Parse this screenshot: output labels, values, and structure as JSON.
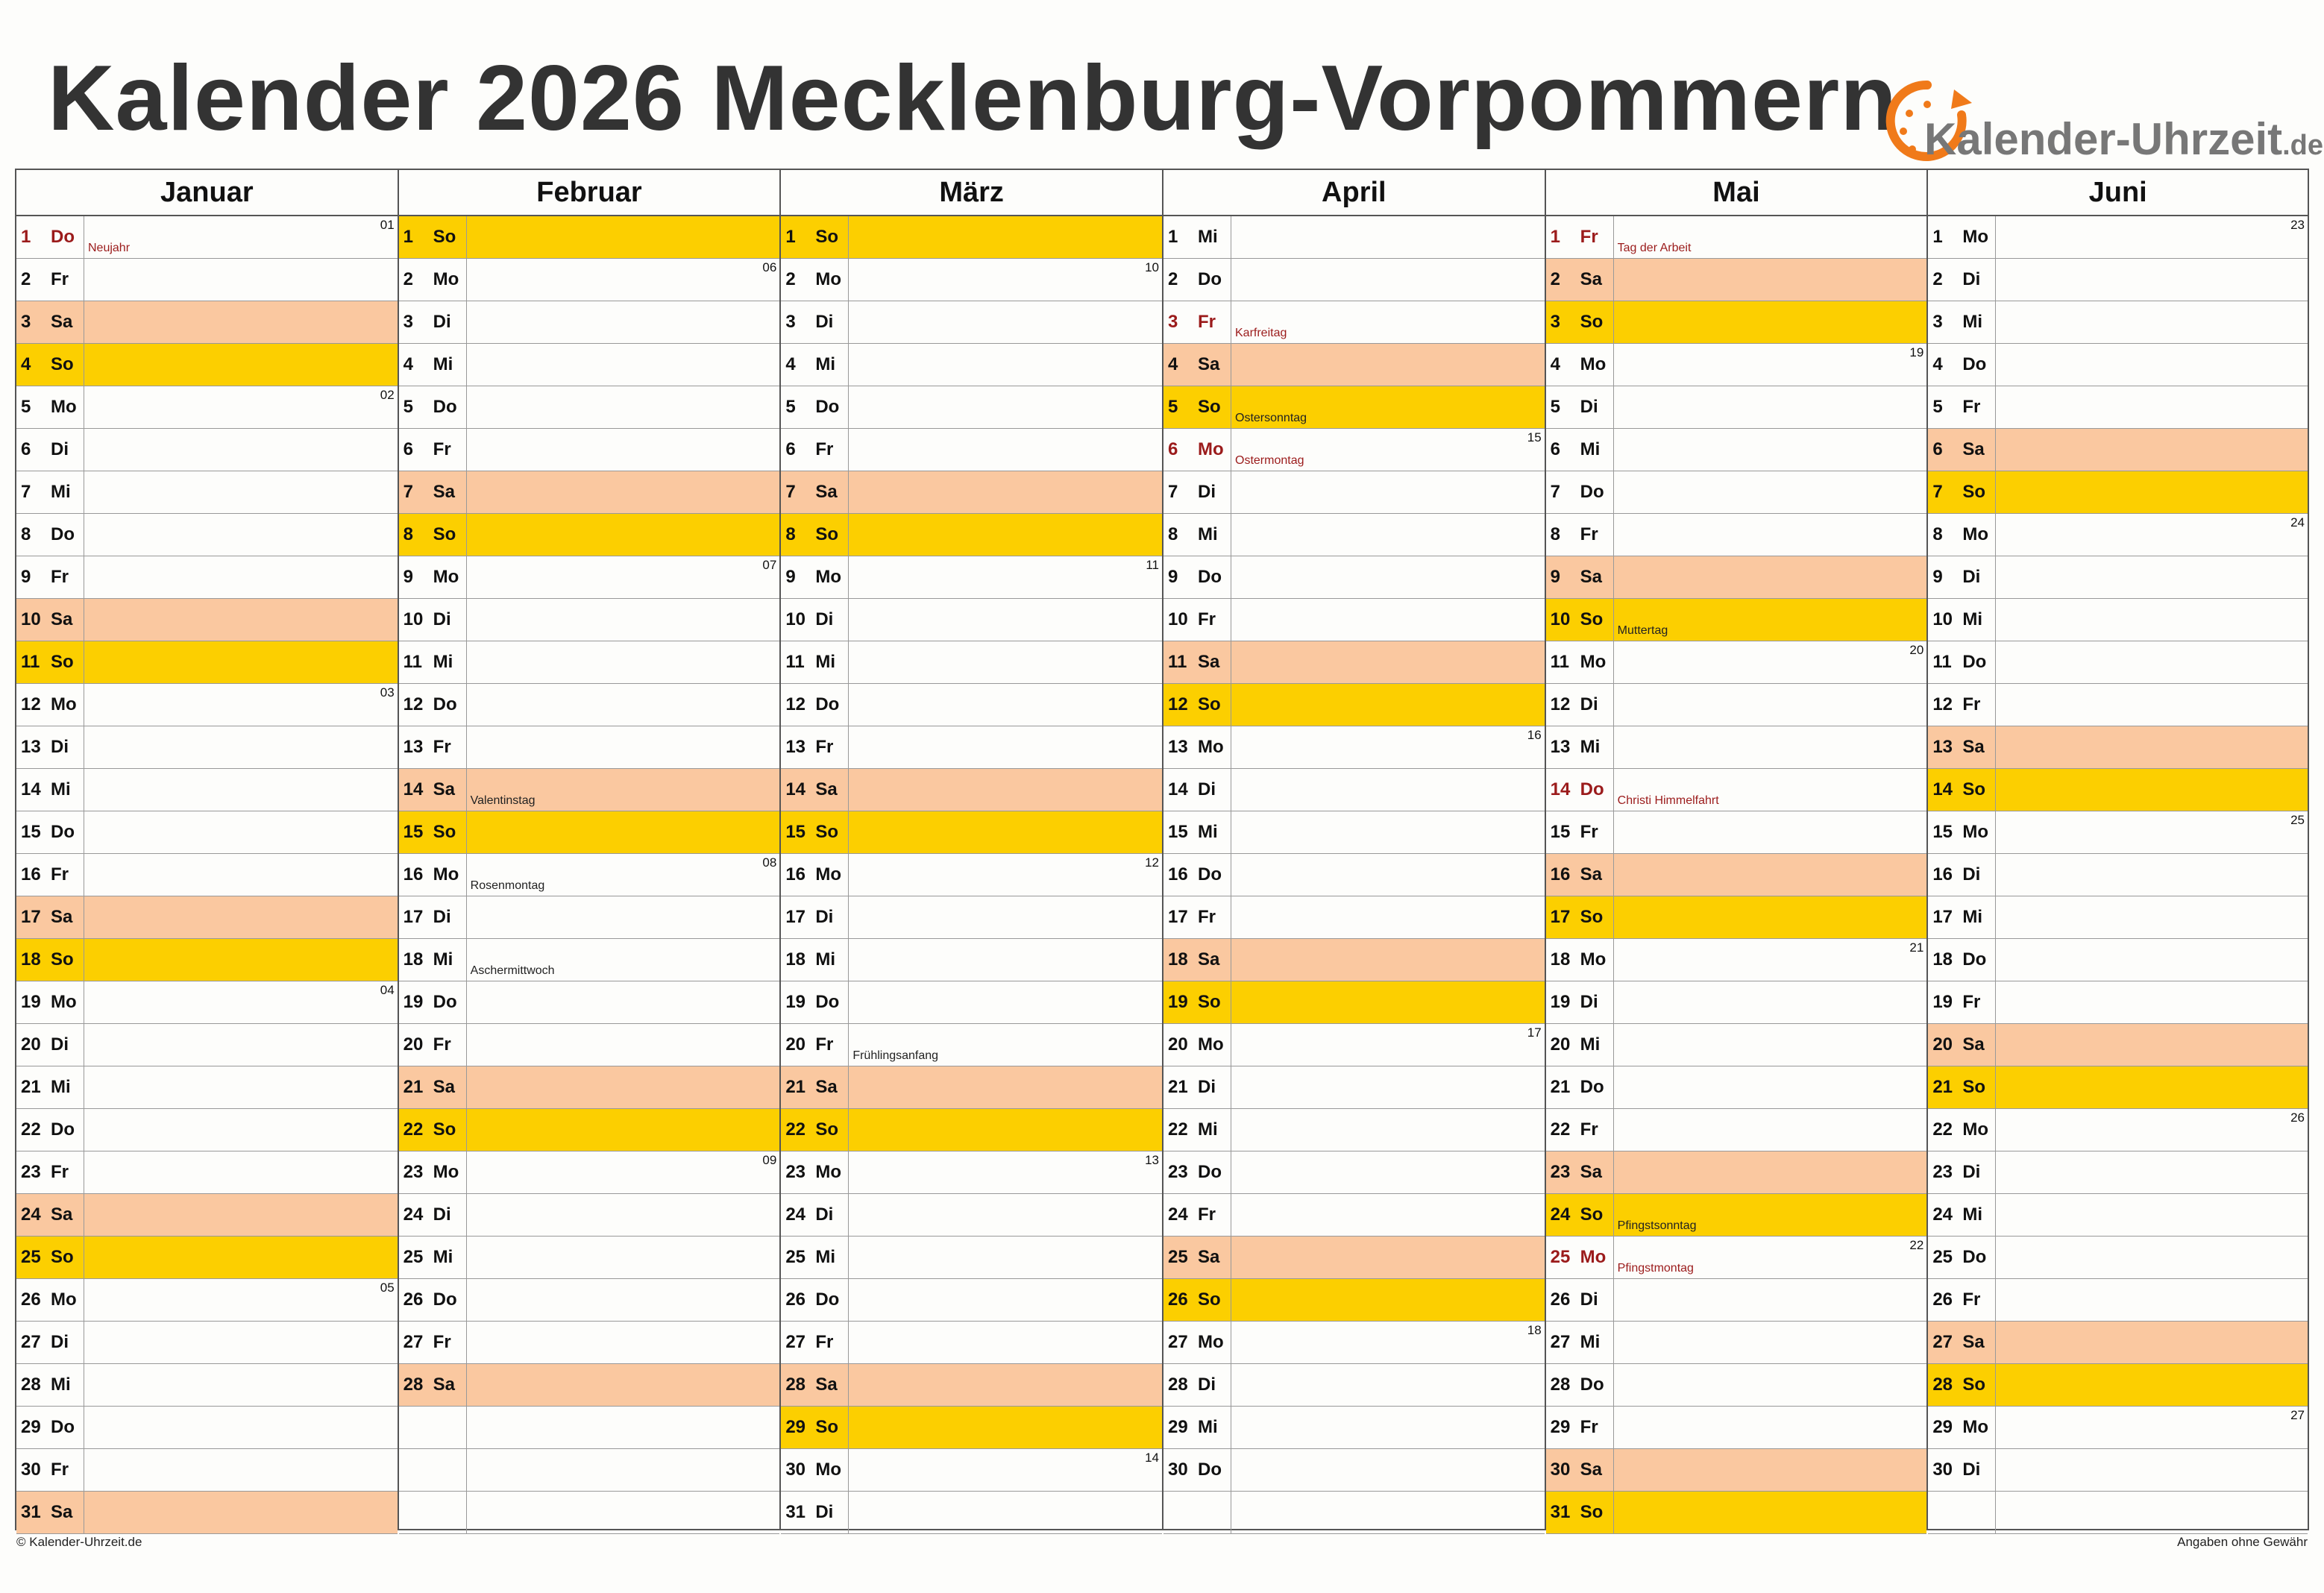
{
  "title": "Kalender 2026 Mecklenburg-Vorpommern",
  "logo": {
    "text": "Kalender-Uhrzeit",
    "tld": ".de"
  },
  "colors": {
    "saturday": "#fac8a0",
    "sunday": "#fccf00",
    "holiday_text": "#9b1b1b"
  },
  "months": [
    {
      "name": "Januar",
      "days": [
        {
          "d": "1",
          "w": "Do",
          "holiday": true,
          "note": "Neujahr",
          "kw": "01"
        },
        {
          "d": "2",
          "w": "Fr"
        },
        {
          "d": "3",
          "w": "Sa"
        },
        {
          "d": "4",
          "w": "So"
        },
        {
          "d": "5",
          "w": "Mo",
          "kw": "02"
        },
        {
          "d": "6",
          "w": "Di"
        },
        {
          "d": "7",
          "w": "Mi"
        },
        {
          "d": "8",
          "w": "Do"
        },
        {
          "d": "9",
          "w": "Fr"
        },
        {
          "d": "10",
          "w": "Sa"
        },
        {
          "d": "11",
          "w": "So"
        },
        {
          "d": "12",
          "w": "Mo",
          "kw": "03"
        },
        {
          "d": "13",
          "w": "Di"
        },
        {
          "d": "14",
          "w": "Mi"
        },
        {
          "d": "15",
          "w": "Do"
        },
        {
          "d": "16",
          "w": "Fr"
        },
        {
          "d": "17",
          "w": "Sa"
        },
        {
          "d": "18",
          "w": "So"
        },
        {
          "d": "19",
          "w": "Mo",
          "kw": "04"
        },
        {
          "d": "20",
          "w": "Di"
        },
        {
          "d": "21",
          "w": "Mi"
        },
        {
          "d": "22",
          "w": "Do"
        },
        {
          "d": "23",
          "w": "Fr"
        },
        {
          "d": "24",
          "w": "Sa"
        },
        {
          "d": "25",
          "w": "So"
        },
        {
          "d": "26",
          "w": "Mo",
          "kw": "05"
        },
        {
          "d": "27",
          "w": "Di"
        },
        {
          "d": "28",
          "w": "Mi"
        },
        {
          "d": "29",
          "w": "Do"
        },
        {
          "d": "30",
          "w": "Fr"
        },
        {
          "d": "31",
          "w": "Sa"
        }
      ]
    },
    {
      "name": "Februar",
      "days": [
        {
          "d": "1",
          "w": "So"
        },
        {
          "d": "2",
          "w": "Mo",
          "kw": "06"
        },
        {
          "d": "3",
          "w": "Di"
        },
        {
          "d": "4",
          "w": "Mi"
        },
        {
          "d": "5",
          "w": "Do"
        },
        {
          "d": "6",
          "w": "Fr"
        },
        {
          "d": "7",
          "w": "Sa"
        },
        {
          "d": "8",
          "w": "So"
        },
        {
          "d": "9",
          "w": "Mo",
          "kw": "07"
        },
        {
          "d": "10",
          "w": "Di"
        },
        {
          "d": "11",
          "w": "Mi"
        },
        {
          "d": "12",
          "w": "Do"
        },
        {
          "d": "13",
          "w": "Fr"
        },
        {
          "d": "14",
          "w": "Sa",
          "note": "Valentinstag"
        },
        {
          "d": "15",
          "w": "So"
        },
        {
          "d": "16",
          "w": "Mo",
          "kw": "08",
          "note": "Rosenmontag"
        },
        {
          "d": "17",
          "w": "Di"
        },
        {
          "d": "18",
          "w": "Mi",
          "note": "Aschermittwoch"
        },
        {
          "d": "19",
          "w": "Do"
        },
        {
          "d": "20",
          "w": "Fr"
        },
        {
          "d": "21",
          "w": "Sa"
        },
        {
          "d": "22",
          "w": "So"
        },
        {
          "d": "23",
          "w": "Mo",
          "kw": "09"
        },
        {
          "d": "24",
          "w": "Di"
        },
        {
          "d": "25",
          "w": "Mi"
        },
        {
          "d": "26",
          "w": "Do"
        },
        {
          "d": "27",
          "w": "Fr"
        },
        {
          "d": "28",
          "w": "Sa"
        }
      ]
    },
    {
      "name": "März",
      "days": [
        {
          "d": "1",
          "w": "So"
        },
        {
          "d": "2",
          "w": "Mo",
          "kw": "10"
        },
        {
          "d": "3",
          "w": "Di"
        },
        {
          "d": "4",
          "w": "Mi"
        },
        {
          "d": "5",
          "w": "Do"
        },
        {
          "d": "6",
          "w": "Fr"
        },
        {
          "d": "7",
          "w": "Sa"
        },
        {
          "d": "8",
          "w": "So"
        },
        {
          "d": "9",
          "w": "Mo",
          "kw": "11"
        },
        {
          "d": "10",
          "w": "Di"
        },
        {
          "d": "11",
          "w": "Mi"
        },
        {
          "d": "12",
          "w": "Do"
        },
        {
          "d": "13",
          "w": "Fr"
        },
        {
          "d": "14",
          "w": "Sa"
        },
        {
          "d": "15",
          "w": "So"
        },
        {
          "d": "16",
          "w": "Mo",
          "kw": "12"
        },
        {
          "d": "17",
          "w": "Di"
        },
        {
          "d": "18",
          "w": "Mi"
        },
        {
          "d": "19",
          "w": "Do"
        },
        {
          "d": "20",
          "w": "Fr",
          "note": "Frühlingsanfang"
        },
        {
          "d": "21",
          "w": "Sa"
        },
        {
          "d": "22",
          "w": "So"
        },
        {
          "d": "23",
          "w": "Mo",
          "kw": "13"
        },
        {
          "d": "24",
          "w": "Di"
        },
        {
          "d": "25",
          "w": "Mi"
        },
        {
          "d": "26",
          "w": "Do"
        },
        {
          "d": "27",
          "w": "Fr"
        },
        {
          "d": "28",
          "w": "Sa"
        },
        {
          "d": "29",
          "w": "So"
        },
        {
          "d": "30",
          "w": "Mo",
          "kw": "14"
        },
        {
          "d": "31",
          "w": "Di"
        }
      ]
    },
    {
      "name": "April",
      "days": [
        {
          "d": "1",
          "w": "Mi"
        },
        {
          "d": "2",
          "w": "Do"
        },
        {
          "d": "3",
          "w": "Fr",
          "holiday": true,
          "note": "Karfreitag"
        },
        {
          "d": "4",
          "w": "Sa"
        },
        {
          "d": "5",
          "w": "So",
          "note": "Ostersonntag"
        },
        {
          "d": "6",
          "w": "Mo",
          "holiday": true,
          "note": "Ostermontag",
          "kw": "15"
        },
        {
          "d": "7",
          "w": "Di"
        },
        {
          "d": "8",
          "w": "Mi"
        },
        {
          "d": "9",
          "w": "Do"
        },
        {
          "d": "10",
          "w": "Fr"
        },
        {
          "d": "11",
          "w": "Sa"
        },
        {
          "d": "12",
          "w": "So"
        },
        {
          "d": "13",
          "w": "Mo",
          "kw": "16"
        },
        {
          "d": "14",
          "w": "Di"
        },
        {
          "d": "15",
          "w": "Mi"
        },
        {
          "d": "16",
          "w": "Do"
        },
        {
          "d": "17",
          "w": "Fr"
        },
        {
          "d": "18",
          "w": "Sa"
        },
        {
          "d": "19",
          "w": "So"
        },
        {
          "d": "20",
          "w": "Mo",
          "kw": "17"
        },
        {
          "d": "21",
          "w": "Di"
        },
        {
          "d": "22",
          "w": "Mi"
        },
        {
          "d": "23",
          "w": "Do"
        },
        {
          "d": "24",
          "w": "Fr"
        },
        {
          "d": "25",
          "w": "Sa"
        },
        {
          "d": "26",
          "w": "So"
        },
        {
          "d": "27",
          "w": "Mo",
          "kw": "18"
        },
        {
          "d": "28",
          "w": "Di"
        },
        {
          "d": "29",
          "w": "Mi"
        },
        {
          "d": "30",
          "w": "Do"
        }
      ]
    },
    {
      "name": "Mai",
      "days": [
        {
          "d": "1",
          "w": "Fr",
          "holiday": true,
          "note": "Tag der Arbeit"
        },
        {
          "d": "2",
          "w": "Sa"
        },
        {
          "d": "3",
          "w": "So"
        },
        {
          "d": "4",
          "w": "Mo",
          "kw": "19"
        },
        {
          "d": "5",
          "w": "Di"
        },
        {
          "d": "6",
          "w": "Mi"
        },
        {
          "d": "7",
          "w": "Do"
        },
        {
          "d": "8",
          "w": "Fr"
        },
        {
          "d": "9",
          "w": "Sa"
        },
        {
          "d": "10",
          "w": "So",
          "note": "Muttertag"
        },
        {
          "d": "11",
          "w": "Mo",
          "kw": "20"
        },
        {
          "d": "12",
          "w": "Di"
        },
        {
          "d": "13",
          "w": "Mi"
        },
        {
          "d": "14",
          "w": "Do",
          "holiday": true,
          "note": "Christi Himmelfahrt"
        },
        {
          "d": "15",
          "w": "Fr"
        },
        {
          "d": "16",
          "w": "Sa"
        },
        {
          "d": "17",
          "w": "So"
        },
        {
          "d": "18",
          "w": "Mo",
          "kw": "21"
        },
        {
          "d": "19",
          "w": "Di"
        },
        {
          "d": "20",
          "w": "Mi"
        },
        {
          "d": "21",
          "w": "Do"
        },
        {
          "d": "22",
          "w": "Fr"
        },
        {
          "d": "23",
          "w": "Sa"
        },
        {
          "d": "24",
          "w": "So",
          "note": "Pfingstsonntag"
        },
        {
          "d": "25",
          "w": "Mo",
          "holiday": true,
          "note": "Pfingstmontag",
          "kw": "22"
        },
        {
          "d": "26",
          "w": "Di"
        },
        {
          "d": "27",
          "w": "Mi"
        },
        {
          "d": "28",
          "w": "Do"
        },
        {
          "d": "29",
          "w": "Fr"
        },
        {
          "d": "30",
          "w": "Sa"
        },
        {
          "d": "31",
          "w": "So"
        }
      ]
    },
    {
      "name": "Juni",
      "days": [
        {
          "d": "1",
          "w": "Mo",
          "kw": "23"
        },
        {
          "d": "2",
          "w": "Di"
        },
        {
          "d": "3",
          "w": "Mi"
        },
        {
          "d": "4",
          "w": "Do"
        },
        {
          "d": "5",
          "w": "Fr"
        },
        {
          "d": "6",
          "w": "Sa"
        },
        {
          "d": "7",
          "w": "So"
        },
        {
          "d": "8",
          "w": "Mo",
          "kw": "24"
        },
        {
          "d": "9",
          "w": "Di"
        },
        {
          "d": "10",
          "w": "Mi"
        },
        {
          "d": "11",
          "w": "Do"
        },
        {
          "d": "12",
          "w": "Fr"
        },
        {
          "d": "13",
          "w": "Sa"
        },
        {
          "d": "14",
          "w": "So"
        },
        {
          "d": "15",
          "w": "Mo",
          "kw": "25"
        },
        {
          "d": "16",
          "w": "Di"
        },
        {
          "d": "17",
          "w": "Mi"
        },
        {
          "d": "18",
          "w": "Do"
        },
        {
          "d": "19",
          "w": "Fr"
        },
        {
          "d": "20",
          "w": "Sa"
        },
        {
          "d": "21",
          "w": "So"
        },
        {
          "d": "22",
          "w": "Mo",
          "kw": "26"
        },
        {
          "d": "23",
          "w": "Di"
        },
        {
          "d": "24",
          "w": "Mi"
        },
        {
          "d": "25",
          "w": "Do"
        },
        {
          "d": "26",
          "w": "Fr"
        },
        {
          "d": "27",
          "w": "Sa"
        },
        {
          "d": "28",
          "w": "So"
        },
        {
          "d": "29",
          "w": "Mo",
          "kw": "27"
        },
        {
          "d": "30",
          "w": "Di"
        }
      ]
    }
  ],
  "footer": {
    "left": "© Kalender-Uhrzeit.de",
    "right": "Angaben ohne Gewähr"
  }
}
